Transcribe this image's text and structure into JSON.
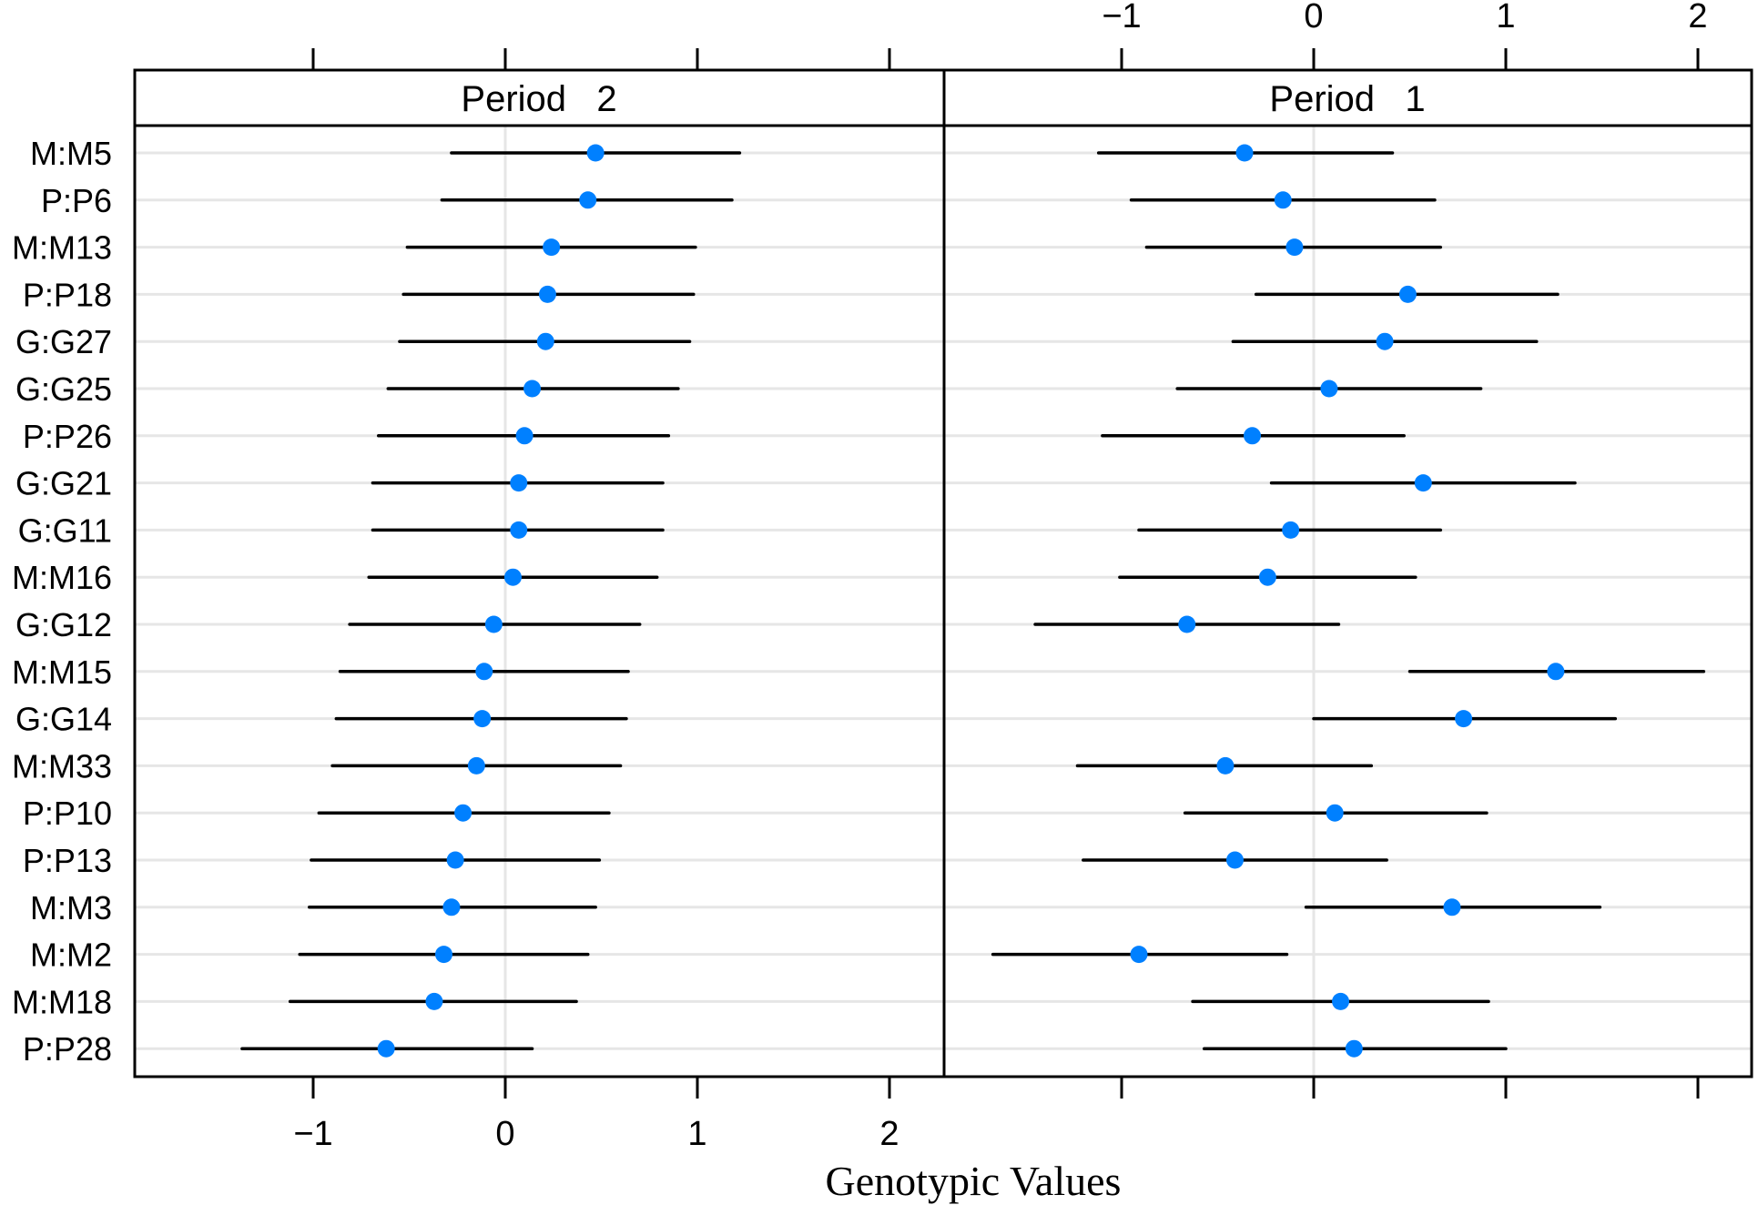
{
  "chart_data": {
    "type": "dotplot-interval",
    "xlabel": "Genotypic Values",
    "ylabel": "",
    "xlim": [
      -1.8,
      2.3
    ],
    "x_ticks": [
      -1,
      0,
      1,
      2
    ],
    "x_tick_labels": [
      "−1",
      "0",
      "1",
      "2"
    ],
    "grid": true,
    "categories": [
      "M:M5",
      "P:P6",
      "M:M13",
      "P:P18",
      "G:G27",
      "G:G25",
      "P:P26",
      "G:G21",
      "G:G11",
      "M:M16",
      "G:G12",
      "M:M15",
      "G:G14",
      "M:M33",
      "P:P10",
      "P:P13",
      "M:M3",
      "M:M2",
      "M:M18",
      "P:P28"
    ],
    "panels": [
      {
        "name": "Period   2",
        "estimate": [
          0.47,
          0.43,
          0.24,
          0.22,
          0.21,
          0.14,
          0.1,
          0.07,
          0.07,
          0.04,
          -0.06,
          -0.11,
          -0.12,
          -0.15,
          -0.22,
          -0.26,
          -0.28,
          -0.32,
          -0.37,
          -0.62
        ],
        "lower": [
          -0.28,
          -0.33,
          -0.51,
          -0.53,
          -0.55,
          -0.61,
          -0.66,
          -0.69,
          -0.69,
          -0.71,
          -0.81,
          -0.86,
          -0.88,
          -0.9,
          -0.97,
          -1.01,
          -1.02,
          -1.07,
          -1.12,
          -1.37
        ],
        "upper": [
          1.22,
          1.18,
          0.99,
          0.98,
          0.96,
          0.9,
          0.85,
          0.82,
          0.82,
          0.79,
          0.7,
          0.64,
          0.63,
          0.6,
          0.54,
          0.49,
          0.47,
          0.43,
          0.37,
          0.14
        ]
      },
      {
        "name": "Period   1",
        "estimate": [
          -0.36,
          -0.16,
          -0.1,
          0.49,
          0.37,
          0.08,
          -0.32,
          0.57,
          -0.12,
          -0.24,
          -0.66,
          1.26,
          0.78,
          -0.46,
          0.11,
          -0.41,
          0.72,
          -0.91,
          0.14,
          0.21
        ],
        "lower": [
          -1.12,
          -0.95,
          -0.87,
          -0.3,
          -0.42,
          -0.71,
          -1.1,
          -0.22,
          -0.91,
          -1.01,
          -1.45,
          0.5,
          0.0,
          -1.23,
          -0.67,
          -1.2,
          -0.04,
          -1.67,
          -0.63,
          -0.57
        ],
        "upper": [
          0.41,
          0.63,
          0.66,
          1.27,
          1.16,
          0.87,
          0.47,
          1.36,
          0.66,
          0.53,
          0.13,
          2.03,
          1.57,
          0.3,
          0.9,
          0.38,
          1.49,
          -0.14,
          0.91,
          1.0
        ]
      }
    ],
    "colors": {
      "point": "#0080ff",
      "interval": "#000000",
      "reference_line": "#e6e6e6",
      "frame": "#000000"
    }
  }
}
